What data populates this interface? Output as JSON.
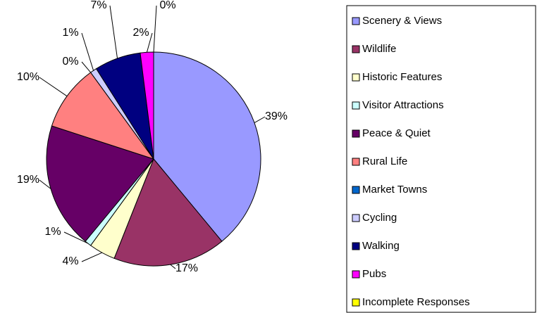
{
  "chart_data": {
    "type": "pie",
    "categories": [
      "Scenery & Views",
      "Wildlife",
      "Historic Features",
      "Visitor Attractions",
      "Peace & Quiet",
      "Rural Life",
      "Market Towns",
      "Cycling",
      "Walking",
      "Pubs",
      "Incomplete Responses"
    ],
    "values": [
      39,
      17,
      4,
      1,
      19,
      10,
      0,
      1,
      7,
      2,
      0
    ],
    "value_labels": [
      "39%",
      "17%",
      "4%",
      "1%",
      "19%",
      "10%",
      "0%",
      "1%",
      "7%",
      "2%",
      "0%"
    ],
    "colors": [
      "#9999ff",
      "#993366",
      "#ffffcc",
      "#ccffff",
      "#660066",
      "#ff8080",
      "#0066cc",
      "#ccccff",
      "#000080",
      "#ff00ff",
      "#ffff00"
    ],
    "legend": "right"
  }
}
